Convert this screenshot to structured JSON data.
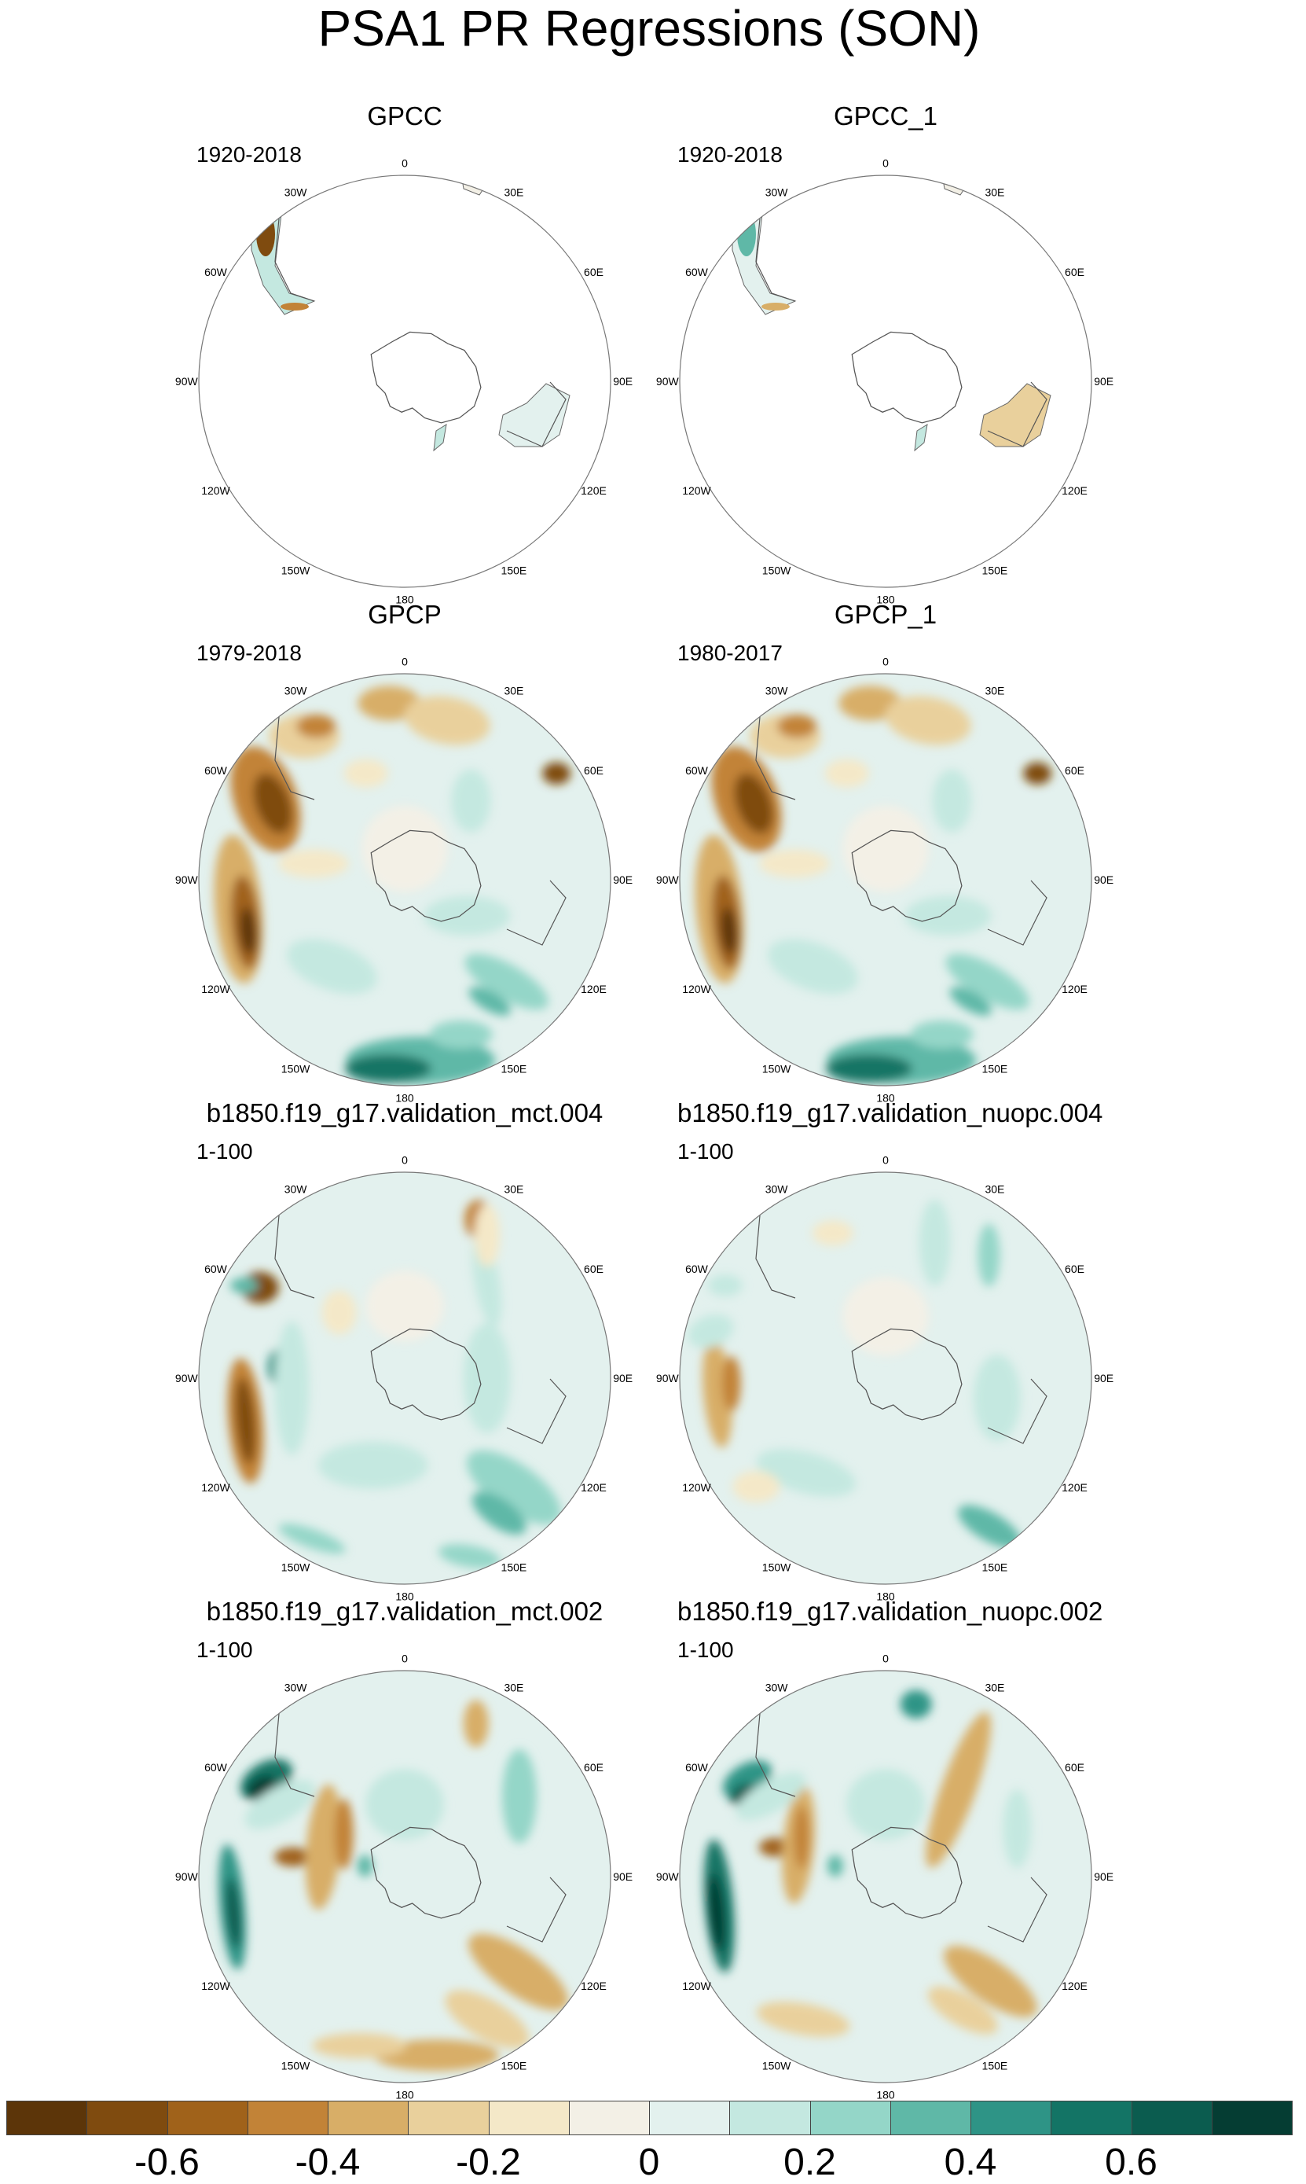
{
  "title": "PSA1 PR Regressions (SON)",
  "panels": [
    {
      "name": "GPCC",
      "period": "1920-2018",
      "pattern": "obs-sparse"
    },
    {
      "name": "GPCC_1",
      "period": "1920-2018",
      "pattern": "obs-sparse"
    },
    {
      "name": "GPCP",
      "period": "1979-2018",
      "pattern": "gpcp"
    },
    {
      "name": "GPCP_1",
      "period": "1980-2017",
      "pattern": "gpcp"
    },
    {
      "name": "b1850.f19_g17.validation_mct.004",
      "period": "1-100",
      "pattern": "model-a"
    },
    {
      "name": "b1850.f19_g17.validation_nuopc.004",
      "period": "1-100",
      "pattern": "model-b"
    },
    {
      "name": "b1850.f19_g17.validation_mct.002",
      "period": "1-100",
      "pattern": "model-c"
    },
    {
      "name": "b1850.f19_g17.validation_nuopc.002",
      "period": "1-100",
      "pattern": "model-d"
    }
  ],
  "lon_labels": [
    "0",
    "30E",
    "60E",
    "90E",
    "120E",
    "150E",
    "180",
    "150W",
    "120W",
    "90W",
    "60W",
    "30W"
  ],
  "colorbar": {
    "colors": [
      "#5c3509",
      "#7f4b0f",
      "#a0621a",
      "#c28337",
      "#d8ae67",
      "#e9d09c",
      "#f4e8c8",
      "#f3f0e6",
      "#e3f1ee",
      "#c4e8e0",
      "#94d6c8",
      "#5fb8a7",
      "#2e9486",
      "#137465",
      "#0b5c4f",
      "#053d33"
    ],
    "labels": [
      "-0.6",
      "-0.4",
      "-0.2",
      "0",
      "0.2",
      "0.4",
      "0.6"
    ]
  }
}
